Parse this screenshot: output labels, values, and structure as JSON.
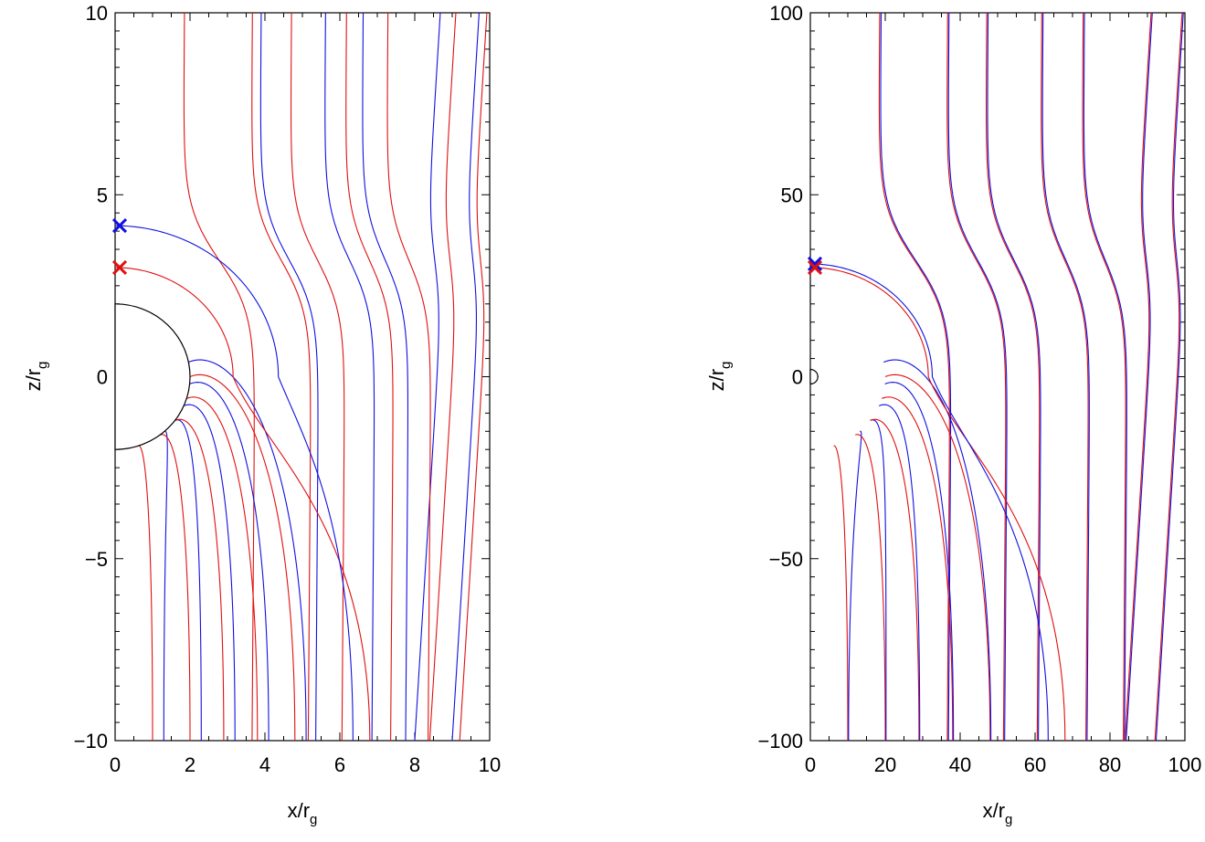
{
  "chart_data": [
    {
      "type": "line",
      "xlabel": "x/r",
      "xlabel_sub": "g",
      "ylabel": "z/r",
      "ylabel_sub": "g",
      "xlim": [
        0,
        10
      ],
      "ylim": [
        -10,
        10
      ],
      "xticks": [
        0,
        2,
        4,
        6,
        8,
        10
      ],
      "xtick_labels": [
        "0",
        "2",
        "4",
        "6",
        "8",
        "10"
      ],
      "yticks": [
        -10,
        -5,
        0,
        5,
        10
      ],
      "ytick_labels": [
        "−10",
        "−5",
        "0",
        "5",
        "10"
      ],
      "horizon_radius": 2,
      "markers": [
        {
          "x": 0,
          "z": 4.15,
          "color": "#1010e0",
          "symbol": "x"
        },
        {
          "x": 0,
          "z": 3.0,
          "color": "#e01010",
          "symbol": "x"
        }
      ],
      "far_offset": 0.5,
      "loop_scale": 1.0,
      "colors": {
        "blue": "#1010e0",
        "red": "#e01010"
      }
    },
    {
      "type": "line",
      "xlabel": "x/r",
      "xlabel_sub": "g",
      "ylabel": "z/r",
      "ylabel_sub": "g",
      "xlim": [
        0,
        100
      ],
      "ylim": [
        -100,
        100
      ],
      "xticks": [
        0,
        20,
        40,
        60,
        80,
        100
      ],
      "xtick_labels": [
        "0",
        "20",
        "40",
        "60",
        "80",
        "100"
      ],
      "yticks": [
        -100,
        -50,
        0,
        50,
        100
      ],
      "ytick_labels": [
        "−100",
        "−50",
        "0",
        "50",
        "100"
      ],
      "horizon_radius": 2,
      "markers": [
        {
          "x": 0,
          "z": 31,
          "color": "#1010e0",
          "symbol": "x"
        },
        {
          "x": 0,
          "z": 30,
          "color": "#e01010",
          "symbol": "x"
        }
      ],
      "far_offset": 0.05,
      "loop_scale": 10.0,
      "colors": {
        "blue": "#1010e0",
        "red": "#e01010"
      }
    }
  ]
}
